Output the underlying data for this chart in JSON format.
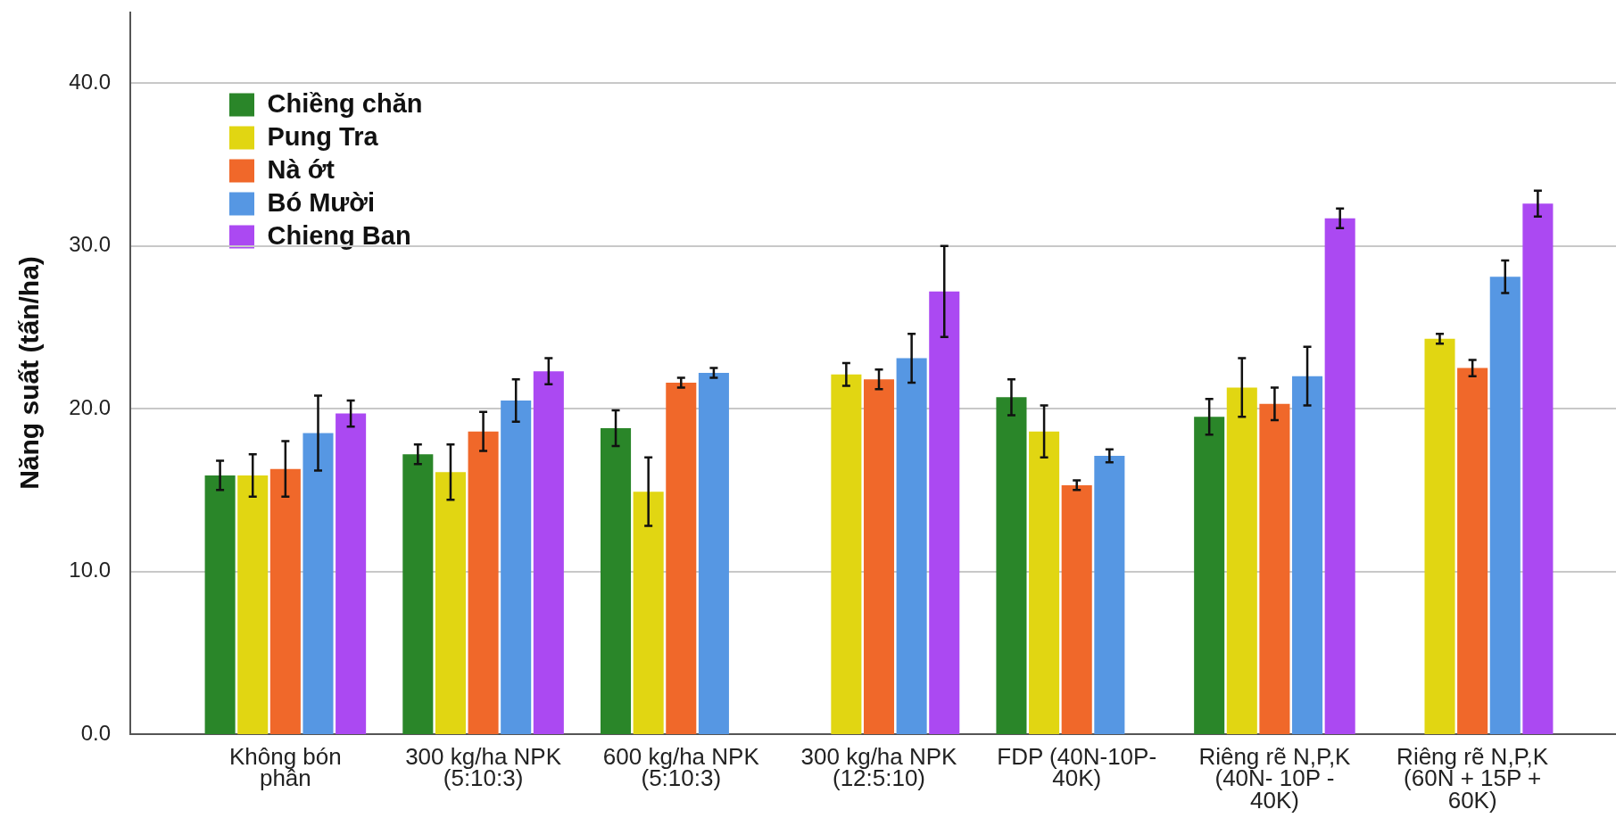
{
  "chart_data": {
    "type": "bar",
    "ylabel": "Năng suất (tấn/ha)",
    "categories": [
      "Không bón phân",
      "300 kg/ha NPK (5:10:3)",
      "600 kg/ha NPK (5:10:3)",
      "300 kg/ha NPK (12:5:10)",
      "FDP (40N-10P-40K)",
      "Riêng rẽ N,P,K (40N- 10P - 40K)",
      "Riêng rẽ N,P,K (60N + 15P + 60K)"
    ],
    "series": [
      {
        "name": "Chiềng chăn",
        "color": "#2a8629",
        "values": [
          15.9,
          17.2,
          18.8,
          null,
          20.7,
          19.5,
          null
        ],
        "errors": [
          0.9,
          0.6,
          1.1,
          null,
          1.1,
          1.1,
          null
        ]
      },
      {
        "name": "Pung Tra",
        "color": "#e1d612",
        "values": [
          15.9,
          16.1,
          14.9,
          22.1,
          18.6,
          21.3,
          24.3
        ],
        "errors": [
          1.3,
          1.7,
          2.1,
          0.7,
          1.6,
          1.8,
          0.3
        ]
      },
      {
        "name": "Nà ớt",
        "color": "#f0682a",
        "values": [
          16.3,
          18.6,
          21.6,
          21.8,
          15.3,
          20.3,
          22.5
        ],
        "errors": [
          1.7,
          1.2,
          0.3,
          0.6,
          0.3,
          1.0,
          0.5
        ]
      },
      {
        "name": "Bó Mười",
        "color": "#5697e3",
        "values": [
          18.5,
          20.5,
          22.2,
          23.1,
          17.1,
          22.0,
          28.1
        ],
        "errors": [
          2.3,
          1.3,
          0.3,
          1.5,
          0.4,
          1.8,
          1.0
        ]
      },
      {
        "name": "Chieng Ban",
        "color": "#ab49f2",
        "values": [
          19.7,
          22.3,
          null,
          27.2,
          null,
          31.7,
          32.6
        ],
        "errors": [
          0.8,
          0.8,
          null,
          2.8,
          null,
          0.6,
          0.8
        ]
      }
    ],
    "ylim": [
      0,
      44.4
    ],
    "yticks": [
      {
        "value": 0,
        "label": "0.0"
      },
      {
        "value": 10,
        "label": "10.0"
      },
      {
        "value": 20,
        "label": "20.0"
      },
      {
        "value": 30,
        "label": "30.0"
      },
      {
        "value": 40,
        "label": "40.0"
      }
    ],
    "grid": "y",
    "legend": "top left"
  }
}
